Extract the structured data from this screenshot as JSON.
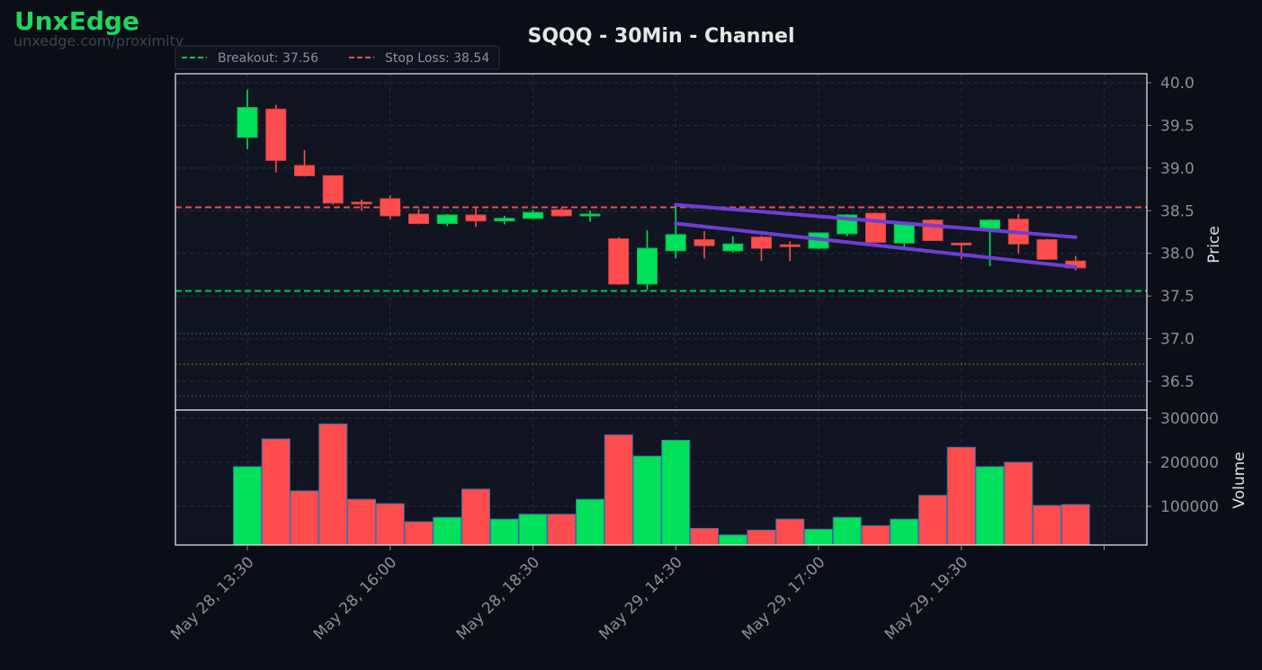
{
  "brand": {
    "name": "UnxEdge",
    "url": "unxedge.com/proximity"
  },
  "chart_data": {
    "type": "candlestick",
    "title": "SQQQ - 30Min - Channel",
    "legend": {
      "placement": "top-left",
      "entries": [
        "Breakout: 37.56",
        "Stop Loss: 38.54"
      ]
    },
    "price_panel": {
      "ylabel": "Price",
      "ylim": [
        36.2,
        40.1
      ],
      "yticks": [
        "36.5",
        "37.0",
        "37.5",
        "38.0",
        "38.5",
        "39.0",
        "39.5",
        "40.0"
      ],
      "grid": true
    },
    "volume_panel": {
      "ylabel": "Volume",
      "ylim": [
        10000,
        300000
      ],
      "yticks": [
        "100000",
        "200000",
        "300000"
      ],
      "grid": true
    },
    "xticks": [
      {
        "index": 0,
        "label": "May 28, 13:30"
      },
      {
        "index": 5,
        "label": "May 28, 16:00"
      },
      {
        "index": 10,
        "label": "May 28, 18:30"
      },
      {
        "index": 15,
        "label": "May 29, 14:30"
      },
      {
        "index": 20,
        "label": "May 29, 17:00"
      },
      {
        "index": 25,
        "label": "May 29, 19:30"
      },
      {
        "index": 30,
        "label": ""
      }
    ],
    "candles": [
      {
        "o": 39.36,
        "h": 39.92,
        "l": 39.22,
        "c": 39.71,
        "v": 190000
      },
      {
        "o": 39.69,
        "h": 39.74,
        "l": 38.95,
        "c": 39.09,
        "v": 253000
      },
      {
        "o": 39.03,
        "h": 39.21,
        "l": 38.9,
        "c": 38.91,
        "v": 135000
      },
      {
        "o": 38.91,
        "h": 38.91,
        "l": 38.57,
        "c": 38.59,
        "v": 287000
      },
      {
        "o": 38.6,
        "h": 38.63,
        "l": 38.5,
        "c": 38.59,
        "v": 116000
      },
      {
        "o": 38.64,
        "h": 38.68,
        "l": 38.4,
        "c": 38.44,
        "v": 106000
      },
      {
        "o": 38.46,
        "h": 38.52,
        "l": 38.34,
        "c": 38.35,
        "v": 65000
      },
      {
        "o": 38.35,
        "h": 38.46,
        "l": 38.32,
        "c": 38.45,
        "v": 75000
      },
      {
        "o": 38.45,
        "h": 38.53,
        "l": 38.31,
        "c": 38.38,
        "v": 139000
      },
      {
        "o": 38.38,
        "h": 38.44,
        "l": 38.34,
        "c": 38.41,
        "v": 71000
      },
      {
        "o": 38.41,
        "h": 38.51,
        "l": 38.4,
        "c": 38.48,
        "v": 82000
      },
      {
        "o": 38.51,
        "h": 38.53,
        "l": 38.43,
        "c": 38.44,
        "v": 82000
      },
      {
        "o": 38.44,
        "h": 38.5,
        "l": 38.37,
        "c": 38.46,
        "v": 116000
      },
      {
        "o": 38.17,
        "h": 38.19,
        "l": 37.63,
        "c": 37.64,
        "v": 262000
      },
      {
        "o": 37.64,
        "h": 38.27,
        "l": 37.57,
        "c": 38.06,
        "v": 214000
      },
      {
        "o": 38.03,
        "h": 38.57,
        "l": 37.94,
        "c": 38.22,
        "v": 250000
      },
      {
        "o": 38.16,
        "h": 38.26,
        "l": 37.94,
        "c": 38.09,
        "v": 50000
      },
      {
        "o": 38.03,
        "h": 38.2,
        "l": 38.01,
        "c": 38.11,
        "v": 35000
      },
      {
        "o": 38.19,
        "h": 38.21,
        "l": 37.91,
        "c": 38.06,
        "v": 46000
      },
      {
        "o": 38.1,
        "h": 38.14,
        "l": 37.91,
        "c": 38.09,
        "v": 71000
      },
      {
        "o": 38.06,
        "h": 38.24,
        "l": 38.05,
        "c": 38.24,
        "v": 48000
      },
      {
        "o": 38.23,
        "h": 38.46,
        "l": 38.2,
        "c": 38.45,
        "v": 75000
      },
      {
        "o": 38.47,
        "h": 38.48,
        "l": 38.12,
        "c": 38.13,
        "v": 56000
      },
      {
        "o": 38.12,
        "h": 38.36,
        "l": 38.08,
        "c": 38.36,
        "v": 71000
      },
      {
        "o": 38.39,
        "h": 38.4,
        "l": 38.15,
        "c": 38.15,
        "v": 125000
      },
      {
        "o": 38.12,
        "h": 38.12,
        "l": 37.93,
        "c": 38.1,
        "v": 234000
      },
      {
        "o": 38.29,
        "h": 38.4,
        "l": 37.85,
        "c": 38.39,
        "v": 190000
      },
      {
        "o": 38.4,
        "h": 38.46,
        "l": 38.0,
        "c": 38.11,
        "v": 200000
      },
      {
        "o": 38.16,
        "h": 38.17,
        "l": 37.93,
        "c": 37.93,
        "v": 102000
      },
      {
        "o": 37.91,
        "h": 37.97,
        "l": 37.8,
        "c": 37.83,
        "v": 104000
      }
    ],
    "channel": {
      "upper": {
        "from": {
          "index": 15,
          "y": 38.57
        },
        "to": {
          "index": 29,
          "y": 38.19
        }
      },
      "lower": {
        "from": {
          "index": 15,
          "y": 38.35
        },
        "to": {
          "index": 29,
          "y": 37.84
        }
      }
    },
    "levels": [
      {
        "name": "Breakout",
        "value": 37.56,
        "color": "#00c853",
        "style": "dashed"
      },
      {
        "name": "Stop Loss",
        "value": 38.54,
        "color": "#e05555",
        "style": "dashed"
      },
      {
        "value": 37.06,
        "color": "#1e7a4a",
        "style": "dotted"
      },
      {
        "value": 36.7,
        "color": "#8a7a2a",
        "style": "dotted"
      },
      {
        "value": 36.33,
        "color": "#8a3a2a",
        "style": "dotted"
      }
    ],
    "colors": {
      "up": "#00e05a",
      "down": "#ff4d4d",
      "channel": "#6e3fd4",
      "panel_bg": "#111521",
      "page_bg": "#0a0e17",
      "frame": "#e0e0e0",
      "grid": "#2a3040",
      "tick_text": "#8a8f99",
      "axis_label": "#e0e0e0"
    }
  }
}
